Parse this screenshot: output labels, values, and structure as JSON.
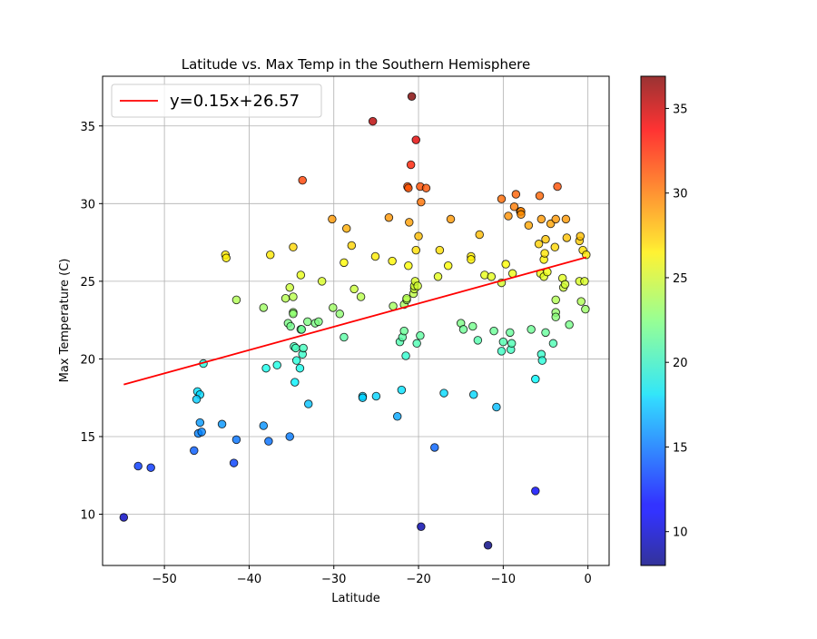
{
  "chart_data": {
    "type": "scatter",
    "title": "Latitude vs. Max Temp in the Southern Hemisphere",
    "xlabel": "Latitude",
    "ylabel": "Max Temperature (C)",
    "xlim": [
      -57.3,
      2.5
    ],
    "ylim": [
      6.7,
      38.2
    ],
    "xticks": [
      -50,
      -40,
      -30,
      -20,
      -10,
      0
    ],
    "xtick_labels": [
      "−50",
      "−40",
      "−30",
      "−20",
      "−10",
      "0"
    ],
    "yticks": [
      10,
      15,
      20,
      25,
      30,
      35
    ],
    "ytick_labels": [
      "10",
      "15",
      "20",
      "25",
      "30",
      "35"
    ],
    "grid": true,
    "legend": {
      "placement": "top-left",
      "entries": [
        "y=0.15x+26.57"
      ]
    },
    "regression": {
      "label": "y=0.15x+26.57",
      "slope": 0.15,
      "intercept": 26.57,
      "x_range": [
        -54.8,
        -0.2
      ],
      "color": "#ff0000"
    },
    "colorbar": {
      "colormap": "jet",
      "range": [
        8.0,
        36.9
      ],
      "ticks": [
        10,
        15,
        20,
        25,
        30,
        35
      ],
      "tick_labels": [
        "10",
        "15",
        "20",
        "25",
        "30",
        "35"
      ]
    },
    "points": [
      [
        -54.8,
        9.8
      ],
      [
        -53.1,
        13.1
      ],
      [
        -51.6,
        13.0
      ],
      [
        -46.5,
        14.1
      ],
      [
        -46.0,
        15.2
      ],
      [
        -45.8,
        15.9
      ],
      [
        -45.6,
        15.3
      ],
      [
        -46.1,
        17.9
      ],
      [
        -45.8,
        17.7
      ],
      [
        -46.2,
        17.4
      ],
      [
        -45.4,
        19.7
      ],
      [
        -43.2,
        15.8
      ],
      [
        -42.8,
        26.7
      ],
      [
        -42.7,
        26.5
      ],
      [
        -41.8,
        13.3
      ],
      [
        -41.5,
        14.8
      ],
      [
        -41.5,
        23.8
      ],
      [
        -38.3,
        15.7
      ],
      [
        -37.7,
        14.7
      ],
      [
        -38.3,
        23.3
      ],
      [
        -38.0,
        19.4
      ],
      [
        -37.5,
        26.7
      ],
      [
        -36.7,
        19.6
      ],
      [
        -35.7,
        23.9
      ],
      [
        -35.2,
        24.6
      ],
      [
        -35.4,
        22.3
      ],
      [
        -35.1,
        22.1
      ],
      [
        -35.2,
        15.0
      ],
      [
        -34.8,
        27.2
      ],
      [
        -34.8,
        24.0
      ],
      [
        -34.8,
        23.0
      ],
      [
        -34.8,
        22.9
      ],
      [
        -34.7,
        20.8
      ],
      [
        -34.6,
        18.5
      ],
      [
        -34.5,
        20.7
      ],
      [
        -34.4,
        19.9
      ],
      [
        -34.0,
        19.4
      ],
      [
        -33.9,
        25.4
      ],
      [
        -33.9,
        21.9
      ],
      [
        -33.8,
        21.9
      ],
      [
        -33.7,
        20.3
      ],
      [
        -33.6,
        20.7
      ],
      [
        -33.7,
        31.5
      ],
      [
        -33.1,
        22.4
      ],
      [
        -33.0,
        17.1
      ],
      [
        -32.2,
        22.3
      ],
      [
        -31.8,
        22.4
      ],
      [
        -31.4,
        25.0
      ],
      [
        -30.2,
        29.0
      ],
      [
        -30.1,
        23.3
      ],
      [
        -29.3,
        22.9
      ],
      [
        -28.8,
        26.2
      ],
      [
        -28.8,
        21.4
      ],
      [
        -28.5,
        28.4
      ],
      [
        -27.9,
        27.3
      ],
      [
        -27.6,
        24.5
      ],
      [
        -26.8,
        24.0
      ],
      [
        -26.6,
        17.6
      ],
      [
        -26.6,
        17.5
      ],
      [
        -25.4,
        35.3
      ],
      [
        -25.1,
        26.6
      ],
      [
        -25.0,
        17.6
      ],
      [
        -23.5,
        29.1
      ],
      [
        -23.1,
        26.3
      ],
      [
        -23.0,
        23.4
      ],
      [
        -22.5,
        16.3
      ],
      [
        -22.0,
        18.0
      ],
      [
        -22.2,
        21.1
      ],
      [
        -21.9,
        21.4
      ],
      [
        -21.7,
        21.8
      ],
      [
        -21.7,
        23.5
      ],
      [
        -21.5,
        20.2
      ],
      [
        -21.4,
        23.8
      ],
      [
        -21.4,
        23.9
      ],
      [
        -21.3,
        31.1
      ],
      [
        -21.2,
        26.0
      ],
      [
        -21.2,
        31.0
      ],
      [
        -21.1,
        28.8
      ],
      [
        -20.9,
        32.5
      ],
      [
        -20.8,
        36.9
      ],
      [
        -20.6,
        24.2
      ],
      [
        -20.5,
        24.5
      ],
      [
        -20.5,
        24.7
      ],
      [
        -20.4,
        25.0
      ],
      [
        -20.3,
        27.0
      ],
      [
        -20.2,
        21.0
      ],
      [
        -20.1,
        24.7
      ],
      [
        -20.0,
        27.9
      ],
      [
        -20.3,
        34.1
      ],
      [
        -19.8,
        31.1
      ],
      [
        -19.8,
        21.5
      ],
      [
        -19.7,
        30.1
      ],
      [
        -19.7,
        9.2
      ],
      [
        -19.1,
        31.0
      ],
      [
        -18.1,
        14.3
      ],
      [
        -17.7,
        25.3
      ],
      [
        -17.5,
        27.0
      ],
      [
        -17.0,
        17.8
      ],
      [
        -16.5,
        26.0
      ],
      [
        -16.2,
        29.0
      ],
      [
        -15.0,
        22.3
      ],
      [
        -14.7,
        21.9
      ],
      [
        -13.8,
        26.6
      ],
      [
        -13.8,
        26.4
      ],
      [
        -13.6,
        22.1
      ],
      [
        -13.5,
        17.7
      ],
      [
        -13.0,
        21.2
      ],
      [
        -12.8,
        28.0
      ],
      [
        -12.2,
        25.4
      ],
      [
        -11.8,
        8.0
      ],
      [
        -11.4,
        25.3
      ],
      [
        -11.1,
        21.8
      ],
      [
        -10.8,
        16.9
      ],
      [
        -10.2,
        30.3
      ],
      [
        -10.2,
        20.5
      ],
      [
        -10.2,
        24.9
      ],
      [
        -10.0,
        21.1
      ],
      [
        -9.7,
        26.1
      ],
      [
        -9.4,
        29.2
      ],
      [
        -9.2,
        21.7
      ],
      [
        -9.1,
        20.6
      ],
      [
        -9.0,
        21.0
      ],
      [
        -8.9,
        25.5
      ],
      [
        -8.7,
        29.8
      ],
      [
        -8.5,
        30.6
      ],
      [
        -8.0,
        29.5
      ],
      [
        -7.9,
        29.5
      ],
      [
        -7.9,
        29.3
      ],
      [
        -7.0,
        28.6
      ],
      [
        -6.7,
        21.9
      ],
      [
        -6.2,
        11.5
      ],
      [
        -6.2,
        18.7
      ],
      [
        -5.8,
        27.4
      ],
      [
        -5.7,
        30.5
      ],
      [
        -5.6,
        25.5
      ],
      [
        -5.5,
        29.0
      ],
      [
        -5.5,
        20.3
      ],
      [
        -5.4,
        19.9
      ],
      [
        -5.2,
        25.3
      ],
      [
        -5.2,
        26.4
      ],
      [
        -5.1,
        26.8
      ],
      [
        -5.0,
        21.7
      ],
      [
        -5.0,
        27.7
      ],
      [
        -4.8,
        25.6
      ],
      [
        -4.4,
        28.7
      ],
      [
        -4.1,
        21.0
      ],
      [
        -3.9,
        27.2
      ],
      [
        -3.8,
        23.8
      ],
      [
        -3.8,
        23.0
      ],
      [
        -3.8,
        22.7
      ],
      [
        -3.8,
        29.0
      ],
      [
        -3.6,
        31.1
      ],
      [
        -3.0,
        25.2
      ],
      [
        -2.9,
        24.6
      ],
      [
        -2.7,
        24.8
      ],
      [
        -2.6,
        29.0
      ],
      [
        -2.5,
        27.8
      ],
      [
        -2.2,
        22.2
      ],
      [
        -1.0,
        25.0
      ],
      [
        -1.0,
        27.6
      ],
      [
        -0.9,
        27.9
      ],
      [
        -0.8,
        23.7
      ],
      [
        -0.6,
        27.0
      ],
      [
        -0.4,
        25.0
      ],
      [
        -0.3,
        23.2
      ],
      [
        -0.2,
        26.7
      ]
    ]
  }
}
